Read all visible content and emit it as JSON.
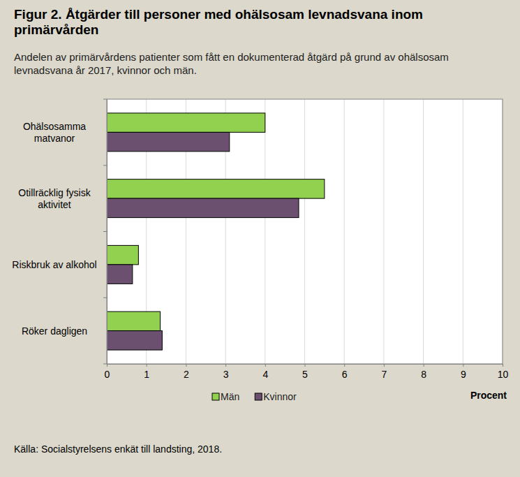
{
  "chart_data": {
    "type": "bar",
    "orientation": "horizontal",
    "title": "Figur 2. Åtgärder till personer med ohälsosam levnadsvana inom primärvården",
    "subtitle": "Andelen av primärvårdens patienter som fått en dokumenterad åtgärd på grund av ohälsosam levnadsvana år 2017, kvinnor och män.",
    "source": "Källa: Socialstyrelsens enkät till landsting, 2018.",
    "x_label": "Procent",
    "categories": [
      "Ohälsosamma matvanor",
      "Otillräcklig fysisk aktivitet",
      "Riskbruk av alkohol",
      "Röker dagligen"
    ],
    "series": [
      {
        "name": "Män",
        "color": "#92d050",
        "values": [
          4.0,
          5.5,
          0.8,
          1.35
        ]
      },
      {
        "name": "Kvinnor",
        "color": "#6b5070",
        "values": [
          3.1,
          4.85,
          0.65,
          1.4
        ]
      }
    ],
    "xlim": [
      0,
      10
    ],
    "xticks": [
      0,
      1,
      2,
      3,
      4,
      5,
      6,
      7,
      8,
      9,
      10
    ],
    "grid": true,
    "legend": "bottom"
  }
}
